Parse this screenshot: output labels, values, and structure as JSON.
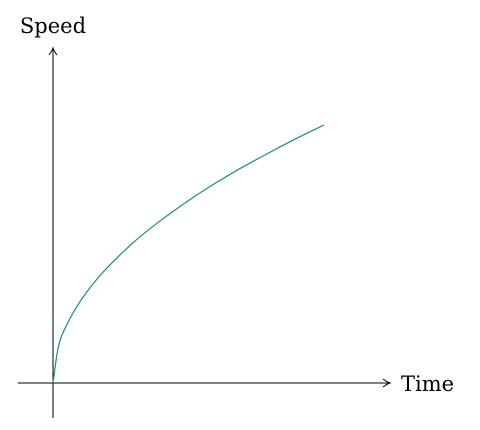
{
  "chart_data": {
    "type": "line",
    "title": "",
    "xlabel": "Time",
    "ylabel": "Speed",
    "grid": false,
    "legend": "none",
    "x_ticks_shown": false,
    "y_ticks_shown": false,
    "series": [
      {
        "color": "#1a8a8a",
        "x": [
          0,
          0.02,
          0.05,
          0.1,
          0.15,
          0.2,
          0.3,
          0.4,
          0.5,
          0.6,
          0.7,
          0.8,
          0.9,
          1.0
        ],
        "y": [
          0,
          0.141,
          0.224,
          0.316,
          0.387,
          0.447,
          0.548,
          0.632,
          0.707,
          0.775,
          0.837,
          0.894,
          0.949,
          1.0
        ]
      }
    ]
  }
}
